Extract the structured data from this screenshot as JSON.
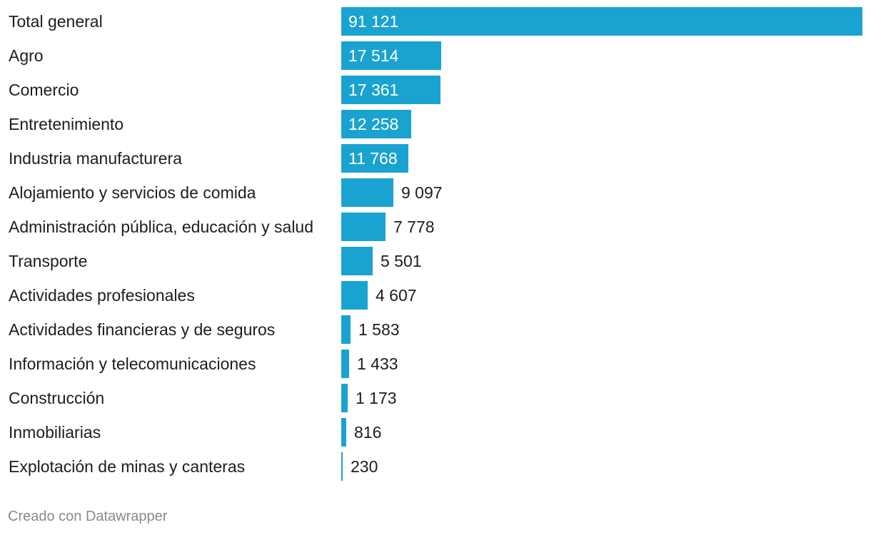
{
  "chart_data": {
    "type": "bar",
    "orientation": "horizontal",
    "bar_color": "#1aa3d0",
    "categories": [
      "Total general",
      "Agro",
      "Comercio",
      "Entretenimiento",
      "Industria manufacturera",
      "Alojamiento y servicios de comida",
      "Administración pública, educación y salud",
      "Transporte",
      "Actividades profesionales",
      "Actividades financieras y de seguros",
      "Información y telecomunicaciones",
      "Construcción",
      "Inmobiliarias",
      "Explotación de minas y canteras"
    ],
    "values": [
      91121,
      17514,
      17361,
      12258,
      11768,
      9097,
      7778,
      5501,
      4607,
      1583,
      1433,
      1173,
      816,
      230
    ],
    "value_labels": [
      "91 121",
      "17 514",
      "17 361",
      "12 258",
      "11 768",
      "9 097",
      "7 778",
      "5 501",
      "4 607",
      "1 583",
      "1 433",
      "1 173",
      "816",
      "230"
    ],
    "xlim": [
      0,
      91121
    ]
  },
  "footer": {
    "credit": "Creado con Datawrapper"
  }
}
